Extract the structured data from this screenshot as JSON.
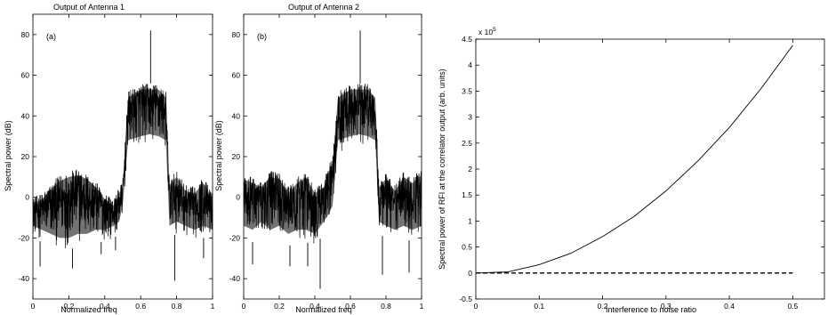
{
  "figure": {
    "panels": [
      {
        "id": "a",
        "title": "Output of Antenna 1",
        "tag": "(a)"
      },
      {
        "id": "b",
        "title": "Output of Antenna 2",
        "tag": "(b)"
      },
      {
        "id": "c"
      }
    ]
  },
  "chart_data": [
    {
      "type": "line",
      "title": "Output of Antenna 1",
      "annotation": "(a)",
      "xlabel": "Normalized freq",
      "ylabel": "Spectral power (dB)",
      "xlim": [
        0,
        1
      ],
      "ylim": [
        -50,
        90
      ],
      "xticks": [
        "0",
        "0.2",
        "0.4",
        "0.6",
        "0.8",
        "1"
      ],
      "yticks": [
        "-40",
        "-20",
        "0",
        "20",
        "40",
        "60",
        "80"
      ],
      "grid": false,
      "line_color": "#000000",
      "spectrum_envelope": {
        "x": [
          0.0,
          0.05,
          0.1,
          0.15,
          0.2,
          0.25,
          0.3,
          0.35,
          0.4,
          0.45,
          0.48,
          0.5,
          0.53,
          0.6,
          0.65,
          0.7,
          0.74,
          0.76,
          0.8,
          0.85,
          0.9,
          0.95,
          1.0
        ],
        "upper": [
          0,
          2,
          7,
          11,
          13,
          14,
          12,
          8,
          2,
          -1,
          5,
          8,
          52,
          56,
          56,
          56,
          52,
          9,
          13,
          6,
          5,
          10,
          2
        ],
        "lower": [
          -20,
          -22,
          -24,
          -26,
          -26,
          -24,
          -24,
          -22,
          -22,
          -20,
          -18,
          -10,
          22,
          24,
          25,
          24,
          22,
          -20,
          -18,
          -20,
          -22,
          -20,
          -22
        ]
      },
      "peaks": [
        {
          "x": 0.655,
          "y": 82
        },
        {
          "x": 0.04,
          "y": -34
        },
        {
          "x": 0.22,
          "y": -35
        },
        {
          "x": 0.38,
          "y": -28
        },
        {
          "x": 0.46,
          "y": -26
        },
        {
          "x": 0.79,
          "y": -41
        },
        {
          "x": 0.95,
          "y": -30
        }
      ]
    },
    {
      "type": "line",
      "title": "Output of Antenna 2",
      "annotation": "(b)",
      "xlabel": "Normalized freq",
      "ylabel": "Spectral power (dB)",
      "xlim": [
        0,
        1
      ],
      "ylim": [
        -50,
        90
      ],
      "xticks": [
        "0",
        "0.2",
        "0.4",
        "0.6",
        "0.8",
        "1"
      ],
      "yticks": [
        "-40",
        "-20",
        "0",
        "20",
        "40",
        "60",
        "80"
      ],
      "grid": false,
      "line_color": "#000000",
      "spectrum_envelope": {
        "x": [
          0.0,
          0.05,
          0.1,
          0.15,
          0.2,
          0.25,
          0.3,
          0.35,
          0.4,
          0.45,
          0.48,
          0.5,
          0.53,
          0.6,
          0.65,
          0.7,
          0.74,
          0.76,
          0.8,
          0.85,
          0.9,
          0.95,
          1.0
        ],
        "upper": [
          12,
          10,
          8,
          13,
          12,
          5,
          10,
          13,
          5,
          8,
          16,
          20,
          52,
          56,
          56,
          56,
          52,
          8,
          12,
          6,
          13,
          10,
          14
        ],
        "lower": [
          -20,
          -22,
          -18,
          -22,
          -20,
          -24,
          -22,
          -22,
          -24,
          -18,
          -14,
          -10,
          22,
          24,
          25,
          24,
          22,
          -18,
          -20,
          -22,
          -20,
          -22,
          -20
        ]
      },
      "peaks": [
        {
          "x": 0.655,
          "y": 82
        },
        {
          "x": 0.43,
          "y": -45
        },
        {
          "x": 0.05,
          "y": -33
        },
        {
          "x": 0.26,
          "y": -34
        },
        {
          "x": 0.36,
          "y": -34
        },
        {
          "x": 0.78,
          "y": -38
        },
        {
          "x": 0.93,
          "y": -37
        }
      ]
    },
    {
      "type": "line",
      "xlabel": "Interference to noise ratio",
      "ylabel": "Spectral power of RFI at the correlator output (arb. units)",
      "exponent_label": "x 10",
      "exponent_power": "5",
      "xlim": [
        0,
        0.55
      ],
      "ylim": [
        -0.5,
        4.5
      ],
      "xticks": [
        "0",
        "0.1",
        "0.2",
        "0.3",
        "0.4",
        "0.5"
      ],
      "yticks": [
        "-0.5",
        "0",
        "0.5",
        "1",
        "1.5",
        "2",
        "2.5",
        "3",
        "3.5",
        "4",
        "4.5"
      ],
      "grid": false,
      "series": [
        {
          "style": "solid",
          "color": "#000000",
          "x": [
            0,
            0.05,
            0.1,
            0.15,
            0.2,
            0.25,
            0.3,
            0.35,
            0.4,
            0.45,
            0.5
          ],
          "y": [
            0,
            0.02,
            0.16,
            0.38,
            0.7,
            1.09,
            1.58,
            2.15,
            2.8,
            3.55,
            4.38
          ]
        },
        {
          "style": "dashed",
          "color": "#000000",
          "x": [
            0,
            0.5
          ],
          "y": [
            0,
            0
          ]
        }
      ]
    }
  ]
}
